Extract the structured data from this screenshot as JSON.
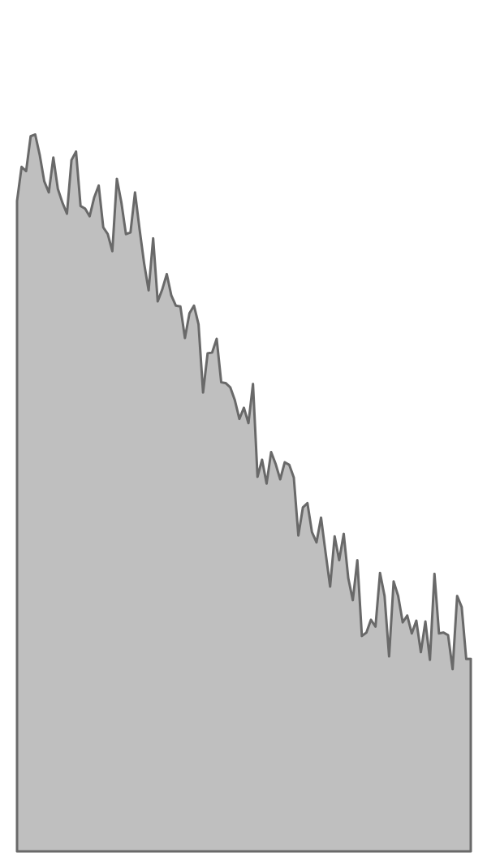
{
  "chart_data": {
    "type": "area",
    "title": "",
    "xlabel": "",
    "ylabel": "",
    "grid": false,
    "xlim": [
      0,
      100
    ],
    "ylim": [
      0,
      1000
    ],
    "colors": {
      "fill": "#bfbfbf",
      "line": "#696969"
    },
    "x": [
      0,
      1,
      2,
      3,
      4,
      5,
      6,
      7,
      8,
      9,
      10,
      11,
      12,
      13,
      14,
      15,
      16,
      17,
      18,
      19,
      20,
      21,
      22,
      23,
      24,
      25,
      26,
      27,
      28,
      29,
      30,
      31,
      32,
      33,
      34,
      35,
      36,
      37,
      38,
      39,
      40,
      41,
      42,
      43,
      44,
      45,
      46,
      47,
      48,
      49,
      50,
      51,
      52,
      53,
      54,
      55,
      56,
      57,
      58,
      59,
      60,
      61,
      62,
      63,
      64,
      65,
      66,
      67,
      68,
      69,
      70,
      71,
      72,
      73,
      74,
      75,
      76,
      77,
      78,
      79,
      80,
      81,
      82,
      83,
      84,
      85,
      86,
      87,
      88,
      89,
      90,
      91,
      92,
      93,
      94,
      95,
      96,
      97,
      98,
      99,
      100
    ],
    "values": [
      764,
      804,
      799,
      840,
      842,
      818,
      787,
      774,
      815,
      778,
      762,
      749,
      812,
      822,
      758,
      755,
      746,
      768,
      782,
      733,
      725,
      705,
      790,
      762,
      725,
      727,
      774,
      731,
      691,
      659,
      720,
      646,
      660,
      678,
      653,
      641,
      640,
      603,
      632,
      641,
      619,
      539,
      585,
      586,
      602,
      551,
      550,
      545,
      530,
      508,
      521,
      503,
      549,
      440,
      460,
      432,
      469,
      455,
      437,
      457,
      454,
      439,
      371,
      404,
      409,
      375,
      363,
      392,
      351,
      311,
      370,
      342,
      373,
      321,
      295,
      342,
      253,
      257,
      272,
      264,
      327,
      300,
      229,
      317,
      300,
      269,
      277,
      256,
      271,
      234,
      270,
      225,
      326,
      256,
      257,
      254,
      214,
      300,
      287,
      226,
      226
    ]
  }
}
